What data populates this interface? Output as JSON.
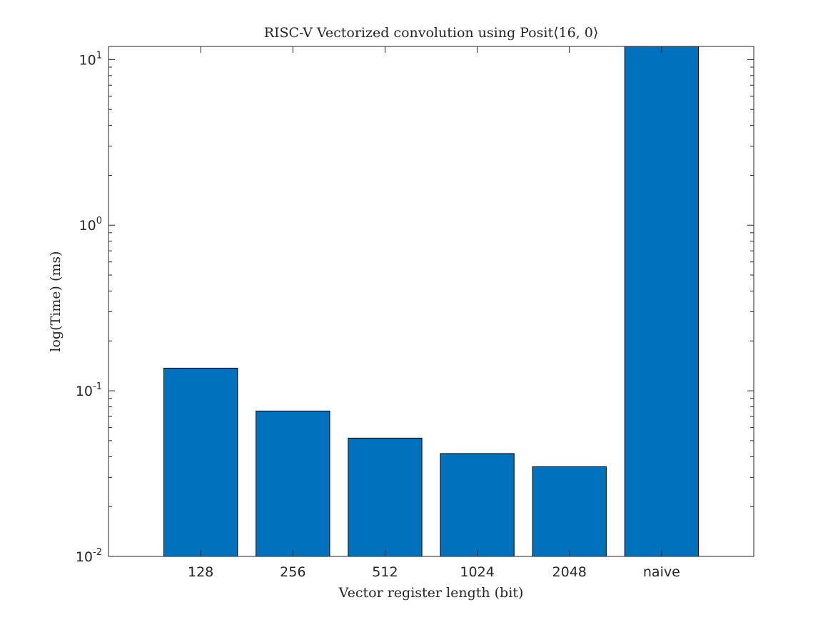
{
  "chart_data": {
    "type": "bar",
    "title": "RISC-V Vectorized convolution using Posit⟨16, 0⟩",
    "xlabel": "Vector register length (bit)",
    "ylabel": "log(Time) (ms)",
    "categories": [
      "128",
      "256",
      "512",
      "1024",
      "2048",
      "naive"
    ],
    "values": [
      0.137,
      0.0755,
      0.0518,
      0.0418,
      0.0348,
      12.0
    ],
    "yscale": "log",
    "ylim": [
      0.01,
      12
    ],
    "xlim": [
      0,
      7
    ],
    "yticks": [
      {
        "value": 0.01,
        "base": "10",
        "exp": "-2"
      },
      {
        "value": 0.1,
        "base": "10",
        "exp": "-1"
      },
      {
        "value": 1,
        "base": "10",
        "exp": "0"
      },
      {
        "value": 10,
        "base": "10",
        "exp": "1"
      }
    ],
    "bar_color": "#0072BD",
    "grid": false,
    "legend": "none"
  }
}
